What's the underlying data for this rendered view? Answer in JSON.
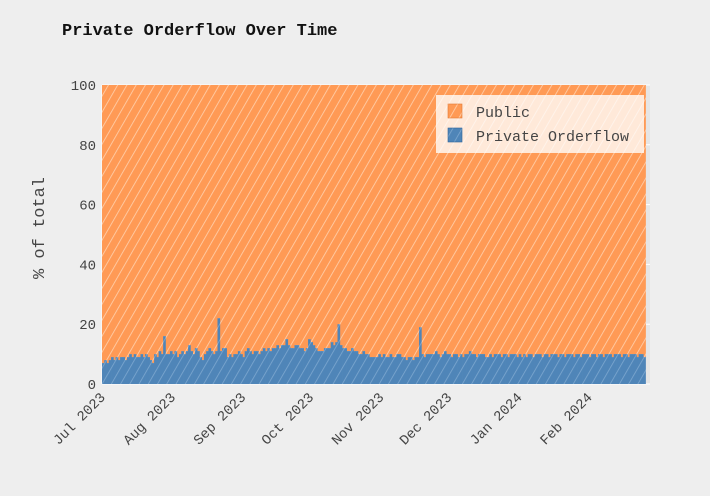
{
  "chart_data": {
    "type": "bar",
    "stacked": true,
    "title": "Private Orderflow Over Time",
    "xlabel": "",
    "ylabel": "% of total",
    "ylim": [
      0,
      100
    ],
    "xlim": [
      "2023-07-01",
      "2024-02-28"
    ],
    "y_ticks": [
      0,
      20,
      40,
      60,
      80,
      100
    ],
    "x_ticks": [
      {
        "date": "2023-07-01",
        "label": "Jul 2023"
      },
      {
        "date": "2023-08-01",
        "label": "Aug 2023"
      },
      {
        "date": "2023-09-01",
        "label": "Sep 2023"
      },
      {
        "date": "2023-10-01",
        "label": "Oct 2023"
      },
      {
        "date": "2023-11-01",
        "label": "Nov 2023"
      },
      {
        "date": "2023-12-01",
        "label": "Dec 2023"
      },
      {
        "date": "2024-01-01",
        "label": "Jan 2024"
      },
      {
        "date": "2024-02-01",
        "label": "Feb 2024"
      }
    ],
    "grid": true,
    "legend_position": "top-right",
    "x_start": "2023-07-01",
    "series": [
      {
        "name": "Public",
        "color": "#ff9a55",
        "pattern": "diagonal-hatch",
        "values": "remainder of 100"
      },
      {
        "name": "Private Orderflow",
        "color": "#4f85b8",
        "pattern": "diagonal-hatch",
        "values": [
          7,
          8,
          7,
          8,
          9,
          8,
          9,
          8,
          9,
          9,
          8,
          9,
          10,
          9,
          10,
          9,
          9,
          10,
          9,
          10,
          9,
          8,
          7,
          10,
          9,
          11,
          10,
          16,
          10,
          10,
          11,
          10,
          11,
          9,
          10,
          11,
          10,
          11,
          13,
          11,
          10,
          12,
          11,
          9,
          8,
          10,
          11,
          12,
          11,
          10,
          11,
          22,
          11,
          12,
          12,
          9,
          10,
          9,
          10,
          10,
          11,
          10,
          9,
          11,
          12,
          11,
          10,
          11,
          11,
          10,
          11,
          12,
          11,
          12,
          11,
          12,
          12,
          13,
          12,
          13,
          13,
          15,
          13,
          12,
          12,
          13,
          13,
          12,
          12,
          11,
          12,
          15,
          14,
          13,
          12,
          11,
          11,
          11,
          12,
          12,
          12,
          14,
          13,
          14,
          20,
          13,
          12,
          12,
          11,
          11,
          12,
          11,
          11,
          10,
          10,
          11,
          10,
          10,
          9,
          9,
          9,
          9,
          10,
          9,
          10,
          9,
          9,
          10,
          9,
          9,
          10,
          10,
          9,
          9,
          8,
          9,
          9,
          8,
          9,
          9,
          19,
          10,
          9,
          10,
          10,
          10,
          10,
          11,
          10,
          9,
          10,
          11,
          10,
          10,
          9,
          10,
          10,
          9,
          10,
          9,
          10,
          10,
          11,
          10,
          10,
          9,
          10,
          10,
          10,
          9,
          9,
          10,
          9,
          10,
          10,
          10,
          9,
          10,
          10,
          9,
          10,
          10,
          10,
          9,
          10,
          9,
          10,
          9,
          10,
          10,
          9,
          10,
          10,
          10,
          9,
          10,
          10,
          9,
          10,
          10,
          10,
          9,
          10,
          10,
          9,
          10,
          10,
          10,
          9,
          10,
          10,
          9,
          10,
          10,
          10,
          9,
          10,
          10,
          9,
          10,
          10,
          9,
          10,
          10,
          10,
          9,
          10,
          10,
          10,
          9,
          10,
          10,
          9,
          10,
          10,
          10,
          9,
          10,
          10,
          9
        ]
      }
    ]
  }
}
